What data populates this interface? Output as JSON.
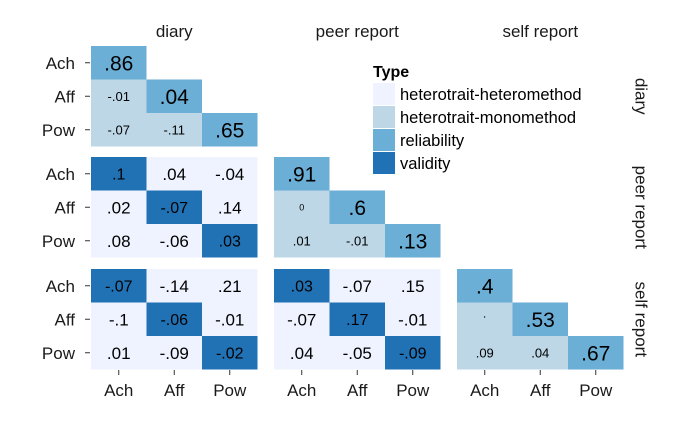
{
  "chart_data": {
    "type": "heatmap",
    "title": "",
    "xlabel": "",
    "ylabel": "",
    "methods": [
      "diary",
      "peer report",
      "self report"
    ],
    "traits": [
      "Ach",
      "Aff",
      "Pow"
    ],
    "legend": {
      "title": "Type",
      "position": "top-right, inside plot",
      "entries": [
        {
          "key": "HH",
          "label": "heterotrait-heteromethod",
          "color": "#EFF3FF"
        },
        {
          "key": "HM",
          "label": "heterotrait-monomethod",
          "color": "#BDD7E7"
        },
        {
          "key": "R",
          "label": "reliability",
          "color": "#6BAED6"
        },
        {
          "key": "V",
          "label": "validity",
          "color": "#2171B5"
        }
      ]
    },
    "blocks": [
      {
        "row_method": "diary",
        "col_method": "diary",
        "cells": [
          {
            "r": 0,
            "c": 0,
            "label": ".86",
            "value": 0.86,
            "type": "R"
          },
          {
            "r": 1,
            "c": 0,
            "label": "-.01",
            "value": -0.01,
            "type": "HM"
          },
          {
            "r": 1,
            "c": 1,
            "label": ".04",
            "value": 0.04,
            "type": "R"
          },
          {
            "r": 2,
            "c": 0,
            "label": "-.07",
            "value": -0.07,
            "type": "HM"
          },
          {
            "r": 2,
            "c": 1,
            "label": "-.11",
            "value": -0.11,
            "type": "HM"
          },
          {
            "r": 2,
            "c": 2,
            "label": ".65",
            "value": 0.65,
            "type": "R"
          }
        ]
      },
      {
        "row_method": "peer report",
        "col_method": "diary",
        "cells": [
          {
            "r": 0,
            "c": 0,
            "label": ".1",
            "value": 0.1,
            "type": "V"
          },
          {
            "r": 0,
            "c": 1,
            "label": ".04",
            "value": 0.04,
            "type": "HH"
          },
          {
            "r": 0,
            "c": 2,
            "label": "-.04",
            "value": -0.04,
            "type": "HH"
          },
          {
            "r": 1,
            "c": 0,
            "label": ".02",
            "value": 0.02,
            "type": "HH"
          },
          {
            "r": 1,
            "c": 1,
            "label": "-.07",
            "value": -0.07,
            "type": "V"
          },
          {
            "r": 1,
            "c": 2,
            "label": ".14",
            "value": 0.14,
            "type": "HH"
          },
          {
            "r": 2,
            "c": 0,
            "label": ".08",
            "value": 0.08,
            "type": "HH"
          },
          {
            "r": 2,
            "c": 1,
            "label": "-.06",
            "value": -0.06,
            "type": "HH"
          },
          {
            "r": 2,
            "c": 2,
            "label": ".03",
            "value": 0.03,
            "type": "V"
          }
        ]
      },
      {
        "row_method": "peer report",
        "col_method": "peer report",
        "cells": [
          {
            "r": 0,
            "c": 0,
            "label": ".91",
            "value": 0.91,
            "type": "R"
          },
          {
            "r": 1,
            "c": 0,
            "label": "0",
            "value": 0.0,
            "type": "HM"
          },
          {
            "r": 1,
            "c": 1,
            "label": ".6",
            "value": 0.6,
            "type": "R"
          },
          {
            "r": 2,
            "c": 0,
            "label": ".01",
            "value": 0.01,
            "type": "HM"
          },
          {
            "r": 2,
            "c": 1,
            "label": "-.01",
            "value": -0.01,
            "type": "HM"
          },
          {
            "r": 2,
            "c": 2,
            "label": ".13",
            "value": 0.13,
            "type": "R"
          }
        ]
      },
      {
        "row_method": "self report",
        "col_method": "diary",
        "cells": [
          {
            "r": 0,
            "c": 0,
            "label": "-.07",
            "value": -0.07,
            "type": "V"
          },
          {
            "r": 0,
            "c": 1,
            "label": "-.14",
            "value": -0.14,
            "type": "HH"
          },
          {
            "r": 0,
            "c": 2,
            "label": ".21",
            "value": 0.21,
            "type": "HH"
          },
          {
            "r": 1,
            "c": 0,
            "label": "-.1",
            "value": -0.1,
            "type": "HH"
          },
          {
            "r": 1,
            "c": 1,
            "label": "-.06",
            "value": -0.06,
            "type": "V"
          },
          {
            "r": 1,
            "c": 2,
            "label": "-.01",
            "value": -0.01,
            "type": "HH"
          },
          {
            "r": 2,
            "c": 0,
            "label": ".01",
            "value": 0.01,
            "type": "HH"
          },
          {
            "r": 2,
            "c": 1,
            "label": "-.09",
            "value": -0.09,
            "type": "HH"
          },
          {
            "r": 2,
            "c": 2,
            "label": "-.02",
            "value": -0.02,
            "type": "V"
          }
        ]
      },
      {
        "row_method": "self report",
        "col_method": "peer report",
        "cells": [
          {
            "r": 0,
            "c": 0,
            "label": ".03",
            "value": 0.03,
            "type": "V"
          },
          {
            "r": 0,
            "c": 1,
            "label": "-.07",
            "value": -0.07,
            "type": "HH"
          },
          {
            "r": 0,
            "c": 2,
            "label": ".15",
            "value": 0.15,
            "type": "HH"
          },
          {
            "r": 1,
            "c": 0,
            "label": "-.07",
            "value": -0.07,
            "type": "HH"
          },
          {
            "r": 1,
            "c": 1,
            "label": ".17",
            "value": 0.17,
            "type": "V"
          },
          {
            "r": 1,
            "c": 2,
            "label": "-.01",
            "value": -0.01,
            "type": "HH"
          },
          {
            "r": 2,
            "c": 0,
            "label": ".04",
            "value": 0.04,
            "type": "HH"
          },
          {
            "r": 2,
            "c": 1,
            "label": "-.05",
            "value": -0.05,
            "type": "HH"
          },
          {
            "r": 2,
            "c": 2,
            "label": "-.09",
            "value": -0.09,
            "type": "V"
          }
        ]
      },
      {
        "row_method": "self report",
        "col_method": "self report",
        "cells": [
          {
            "r": 0,
            "c": 0,
            "label": ".4",
            "value": 0.4,
            "type": "R"
          },
          {
            "r": 1,
            "c": 0,
            "label": "'",
            "value": 0.0,
            "type": "HM"
          },
          {
            "r": 1,
            "c": 1,
            "label": ".53",
            "value": 0.53,
            "type": "R"
          },
          {
            "r": 2,
            "c": 0,
            "label": ".09",
            "value": 0.09,
            "type": "HM"
          },
          {
            "r": 2,
            "c": 1,
            "label": ".04",
            "value": 0.04,
            "type": "HM"
          },
          {
            "r": 2,
            "c": 2,
            "label": ".67",
            "value": 0.67,
            "type": "R"
          }
        ]
      }
    ]
  }
}
